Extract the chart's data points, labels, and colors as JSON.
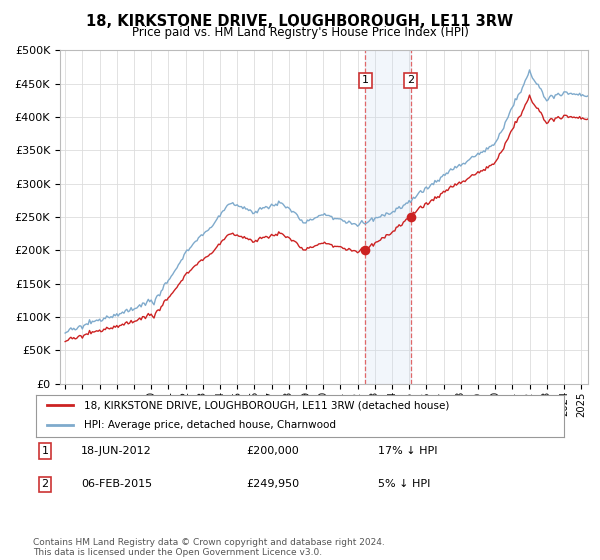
{
  "title": "18, KIRKSTONE DRIVE, LOUGHBOROUGH, LE11 3RW",
  "subtitle": "Price paid vs. HM Land Registry's House Price Index (HPI)",
  "ylabel_ticks": [
    "£0",
    "£50K",
    "£100K",
    "£150K",
    "£200K",
    "£250K",
    "£300K",
    "£350K",
    "£400K",
    "£450K",
    "£500K"
  ],
  "ytick_values": [
    0,
    50000,
    100000,
    150000,
    200000,
    250000,
    300000,
    350000,
    400000,
    450000,
    500000
  ],
  "ylim": [
    0,
    500000
  ],
  "xlim_start": 1994.7,
  "xlim_end": 2025.4,
  "hpi_color": "#7faacc",
  "price_color": "#cc2222",
  "marker_color": "#cc2222",
  "sale1_year": 2012.46,
  "sale1_price": 200000,
  "sale1_label": "1",
  "sale1_date": "18-JUN-2012",
  "sale1_pct": "17% ↓ HPI",
  "sale1_amount": "£200,000",
  "sale2_year": 2015.09,
  "sale2_price": 249950,
  "sale2_label": "2",
  "sale2_date": "06-FEB-2015",
  "sale2_pct": "5% ↓ HPI",
  "sale2_amount": "£249,950",
  "legend_label_price": "18, KIRKSTONE DRIVE, LOUGHBOROUGH, LE11 3RW (detached house)",
  "legend_label_hpi": "HPI: Average price, detached house, Charnwood",
  "footnote": "Contains HM Land Registry data © Crown copyright and database right 2024.\nThis data is licensed under the Open Government Licence v3.0.",
  "background_color": "#ffffff",
  "grid_color": "#dddddd",
  "label_box_color": "#cc3333",
  "vline_color": "#dd4444",
  "span_color": "#ccddf0"
}
